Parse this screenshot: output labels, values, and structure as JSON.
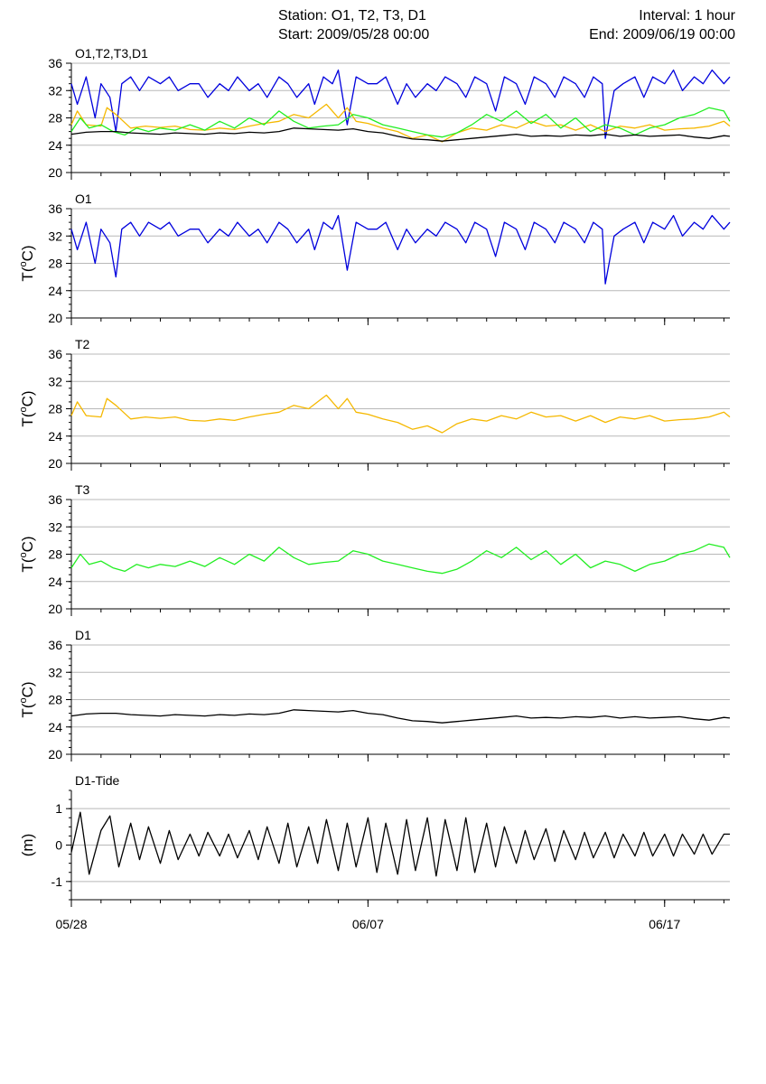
{
  "header": {
    "station": "Station: O1, T2, T3, D1",
    "start": "Start: 2009/05/28 00:00",
    "interval": "Interval: 1 hour",
    "end": "End: 2009/06/19 00:00"
  },
  "colors": {
    "O1": "#0000dd",
    "T2": "#f5b800",
    "T3": "#22ee22",
    "D1": "#000000",
    "tide": "#000000"
  },
  "x_ticks": [
    {
      "label": "05/28",
      "day": 0
    },
    {
      "label": "06/07",
      "day": 10
    },
    {
      "label": "06/17",
      "day": 20
    }
  ],
  "chart_data": [
    {
      "type": "line",
      "label": "O1,T2,T3,D1",
      "ylabel": "",
      "x_unit": "days since 2009/05/28 00:00",
      "xlim": [
        0,
        22.2
      ],
      "ylim": [
        20,
        36
      ],
      "yticks": [
        20,
        24,
        28,
        32,
        36
      ],
      "grid": true,
      "series_refs": [
        "O1",
        "T2",
        "T3",
        "D1"
      ]
    },
    {
      "type": "line",
      "label": "O1",
      "ylabel": "T(oC)",
      "xlim": [
        0,
        22.2
      ],
      "ylim": [
        20,
        36
      ],
      "yticks": [
        20,
        24,
        28,
        32,
        36
      ],
      "grid": true,
      "series": [
        {
          "name": "O1",
          "x": [
            0,
            0.2,
            0.5,
            0.8,
            1.0,
            1.3,
            1.5,
            1.7,
            2.0,
            2.3,
            2.6,
            3.0,
            3.3,
            3.6,
            4.0,
            4.3,
            4.6,
            5.0,
            5.3,
            5.6,
            6.0,
            6.3,
            6.6,
            7.0,
            7.3,
            7.6,
            8.0,
            8.2,
            8.5,
            8.8,
            9.0,
            9.3,
            9.6,
            10.0,
            10.3,
            10.6,
            11.0,
            11.3,
            11.6,
            12.0,
            12.3,
            12.6,
            13.0,
            13.3,
            13.6,
            14.0,
            14.3,
            14.6,
            15.0,
            15.3,
            15.6,
            16.0,
            16.3,
            16.6,
            17.0,
            17.3,
            17.6,
            17.9,
            18.0,
            18.3,
            18.6,
            19.0,
            19.3,
            19.6,
            20.0,
            20.3,
            20.6,
            21.0,
            21.3,
            21.6,
            22.0,
            22.2
          ],
          "y": [
            33,
            30,
            34,
            28,
            33,
            31,
            26,
            33,
            34,
            32,
            34,
            33,
            34,
            32,
            33,
            33,
            31,
            33,
            32,
            34,
            32,
            33,
            31,
            34,
            33,
            31,
            33,
            30,
            34,
            33,
            35,
            27,
            34,
            33,
            33,
            34,
            30,
            33,
            31,
            33,
            32,
            34,
            33,
            31,
            34,
            33,
            29,
            34,
            33,
            30,
            34,
            33,
            31,
            34,
            33,
            31,
            34,
            33,
            25,
            32,
            33,
            34,
            31,
            34,
            33,
            35,
            32,
            34,
            33,
            35,
            33,
            34
          ]
        }
      ]
    },
    {
      "type": "line",
      "label": "T2",
      "ylabel": "T(oC)",
      "xlim": [
        0,
        22.2
      ],
      "ylim": [
        20,
        36
      ],
      "yticks": [
        20,
        24,
        28,
        32,
        36
      ],
      "grid": true,
      "series": [
        {
          "name": "T2",
          "x": [
            0,
            0.2,
            0.5,
            1.0,
            1.2,
            1.5,
            2.0,
            2.5,
            3.0,
            3.5,
            4.0,
            4.5,
            5.0,
            5.5,
            6.0,
            6.5,
            7.0,
            7.5,
            8.0,
            8.3,
            8.6,
            9.0,
            9.3,
            9.6,
            10.0,
            10.5,
            11.0,
            11.5,
            12.0,
            12.5,
            13.0,
            13.5,
            14.0,
            14.5,
            15.0,
            15.5,
            16.0,
            16.5,
            17.0,
            17.5,
            18.0,
            18.5,
            19.0,
            19.5,
            20.0,
            20.5,
            21.0,
            21.5,
            22.0,
            22.2
          ],
          "y": [
            27,
            29,
            27,
            26.8,
            29.5,
            28.5,
            26.5,
            26.8,
            26.6,
            26.8,
            26.3,
            26.2,
            26.5,
            26.3,
            26.8,
            27.2,
            27.5,
            28.5,
            28,
            29,
            30,
            28,
            29.5,
            27.5,
            27.2,
            26.5,
            26,
            25,
            25.5,
            24.5,
            25.8,
            26.5,
            26.2,
            27,
            26.5,
            27.5,
            26.8,
            27,
            26.2,
            27,
            26,
            26.8,
            26.5,
            27,
            26.2,
            26.4,
            26.5,
            26.8,
            27.5,
            26.8
          ]
        }
      ]
    },
    {
      "type": "line",
      "label": "T3",
      "ylabel": "T(oC)",
      "xlim": [
        0,
        22.2
      ],
      "ylim": [
        20,
        36
      ],
      "yticks": [
        20,
        24,
        28,
        32,
        36
      ],
      "grid": true,
      "series": [
        {
          "name": "T3",
          "x": [
            0,
            0.3,
            0.6,
            1.0,
            1.4,
            1.8,
            2.2,
            2.6,
            3.0,
            3.5,
            4.0,
            4.5,
            5.0,
            5.5,
            6.0,
            6.5,
            7.0,
            7.5,
            8.0,
            8.5,
            9.0,
            9.5,
            10.0,
            10.5,
            11.0,
            11.5,
            12.0,
            12.5,
            13.0,
            13.5,
            14.0,
            14.5,
            15.0,
            15.5,
            16.0,
            16.5,
            17.0,
            17.5,
            18.0,
            18.5,
            19.0,
            19.5,
            20.0,
            20.5,
            21.0,
            21.5,
            22.0,
            22.2
          ],
          "y": [
            26,
            28,
            26.5,
            27,
            26,
            25.5,
            26.5,
            26,
            26.5,
            26.2,
            27,
            26.2,
            27.5,
            26.5,
            28,
            27,
            29,
            27.5,
            26.5,
            26.8,
            27,
            28.5,
            28,
            27,
            26.5,
            26,
            25.5,
            25.2,
            25.8,
            27,
            28.5,
            27.5,
            29,
            27.2,
            28.5,
            26.5,
            28,
            26,
            27,
            26.5,
            25.5,
            26.5,
            27,
            28,
            28.5,
            29.5,
            29,
            27.5
          ]
        }
      ]
    },
    {
      "type": "line",
      "label": "D1",
      "ylabel": "T(oC)",
      "xlim": [
        0,
        22.2
      ],
      "ylim": [
        20,
        36
      ],
      "yticks": [
        20,
        24,
        28,
        32,
        36
      ],
      "grid": true,
      "series": [
        {
          "name": "D1",
          "x": [
            0,
            0.5,
            1.0,
            1.5,
            2.0,
            2.5,
            3.0,
            3.5,
            4.0,
            4.5,
            5.0,
            5.5,
            6.0,
            6.5,
            7.0,
            7.5,
            8.0,
            8.5,
            9.0,
            9.5,
            10.0,
            10.5,
            11.0,
            11.5,
            12.0,
            12.5,
            13.0,
            13.5,
            14.0,
            14.5,
            15.0,
            15.5,
            16.0,
            16.5,
            17.0,
            17.5,
            18.0,
            18.5,
            19.0,
            19.5,
            20.0,
            20.5,
            21.0,
            21.5,
            22.0,
            22.2
          ],
          "y": [
            25.6,
            25.9,
            26.0,
            26.0,
            25.8,
            25.7,
            25.6,
            25.8,
            25.7,
            25.6,
            25.8,
            25.7,
            25.9,
            25.8,
            26.0,
            26.5,
            26.4,
            26.3,
            26.2,
            26.4,
            26.0,
            25.8,
            25.3,
            24.9,
            24.8,
            24.6,
            24.8,
            25.0,
            25.2,
            25.4,
            25.6,
            25.3,
            25.4,
            25.3,
            25.5,
            25.4,
            25.6,
            25.3,
            25.5,
            25.3,
            25.4,
            25.5,
            25.2,
            25.0,
            25.4,
            25.3
          ]
        }
      ]
    },
    {
      "type": "line",
      "label": "D1-Tide",
      "ylabel": "(m)",
      "xlim": [
        0,
        22.2
      ],
      "ylim": [
        -1.5,
        1.5
      ],
      "yticks": [
        -1,
        0,
        1
      ],
      "grid": true,
      "series": [
        {
          "name": "D1-Tide",
          "x": [
            0,
            0.3,
            0.6,
            1.0,
            1.3,
            1.6,
            2.0,
            2.3,
            2.6,
            3.0,
            3.3,
            3.6,
            4.0,
            4.3,
            4.6,
            5.0,
            5.3,
            5.6,
            6.0,
            6.3,
            6.6,
            7.0,
            7.3,
            7.6,
            8.0,
            8.3,
            8.6,
            9.0,
            9.3,
            9.6,
            10.0,
            10.3,
            10.6,
            11.0,
            11.3,
            11.6,
            12.0,
            12.3,
            12.6,
            13.0,
            13.3,
            13.6,
            14.0,
            14.3,
            14.6,
            15.0,
            15.3,
            15.6,
            16.0,
            16.3,
            16.6,
            17.0,
            17.3,
            17.6,
            18.0,
            18.3,
            18.6,
            19.0,
            19.3,
            19.6,
            20.0,
            20.3,
            20.6,
            21.0,
            21.3,
            21.6,
            22.0,
            22.2
          ],
          "y": [
            -0.2,
            0.9,
            -0.8,
            0.4,
            0.8,
            -0.6,
            0.6,
            -0.4,
            0.5,
            -0.5,
            0.4,
            -0.4,
            0.3,
            -0.3,
            0.35,
            -0.3,
            0.3,
            -0.35,
            0.4,
            -0.4,
            0.5,
            -0.5,
            0.6,
            -0.6,
            0.5,
            -0.5,
            0.7,
            -0.7,
            0.6,
            -0.6,
            0.75,
            -0.75,
            0.6,
            -0.8,
            0.7,
            -0.7,
            0.75,
            -0.85,
            0.7,
            -0.7,
            0.75,
            -0.75,
            0.6,
            -0.6,
            0.5,
            -0.5,
            0.4,
            -0.4,
            0.45,
            -0.45,
            0.4,
            -0.4,
            0.35,
            -0.35,
            0.35,
            -0.35,
            0.3,
            -0.3,
            0.35,
            -0.3,
            0.3,
            -0.3,
            0.3,
            -0.25,
            0.3,
            -0.25,
            0.3,
            0.3
          ]
        }
      ]
    }
  ]
}
